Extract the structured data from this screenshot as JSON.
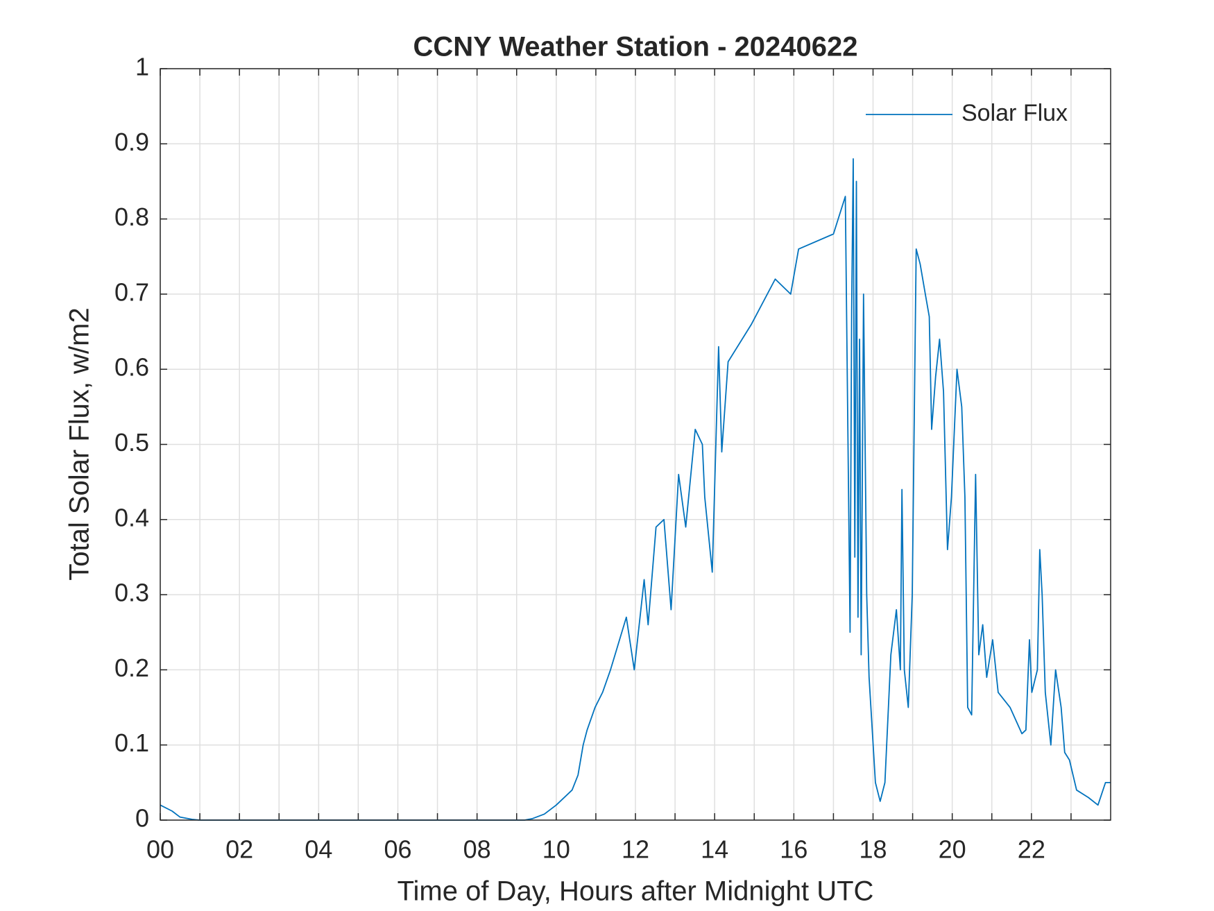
{
  "chart_data": {
    "type": "line",
    "title": "CCNY Weather Station - 20240622",
    "xlabel": "Time of Day, Hours after Midnight UTC",
    "ylabel": "Total Solar Flux, w/m2",
    "x": [
      0,
      0.3,
      0.5,
      0.8,
      1,
      9.2,
      9.4,
      9.7,
      10,
      10.4,
      10.55,
      10.68,
      10.78,
      10.98,
      11.17,
      11.37,
      11.77,
      11.97,
      12.22,
      12.32,
      12.52,
      12.72,
      12.9,
      13.09,
      13.27,
      13.51,
      13.69,
      13.75,
      13.94,
      14.1,
      14.18,
      14.34,
      14.93,
      15.53,
      15.92,
      16.12,
      17.0,
      17.3,
      17.42,
      17.46,
      17.5,
      17.54,
      17.58,
      17.62,
      17.66,
      17.7,
      17.76,
      17.84,
      17.9,
      18.06,
      18.18,
      18.3,
      18.45,
      18.59,
      18.69,
      18.73,
      18.79,
      18.89,
      18.99,
      19.09,
      19.19,
      19.32,
      19.42,
      19.48,
      19.58,
      19.68,
      19.78,
      19.88,
      19.98,
      20.12,
      20.24,
      20.32,
      20.39,
      20.49,
      20.59,
      20.67,
      20.77,
      20.87,
      21.02,
      21.16,
      21.46,
      21.76,
      21.86,
      21.95,
      22.01,
      22.15,
      22.21,
      22.27,
      22.35,
      22.49,
      22.61,
      22.75,
      22.84,
      22.96,
      23.14,
      23.44,
      23.68,
      23.87,
      24.0
    ],
    "series": [
      {
        "name": "Solar Flux",
        "color": "#0072bd",
        "values": [
          0.02,
          0.012,
          0.004,
          0.001,
          0,
          0,
          0.002,
          0.008,
          0.02,
          0.04,
          0.06,
          0.1,
          0.12,
          0.15,
          0.17,
          0.2,
          0.27,
          0.2,
          0.32,
          0.26,
          0.39,
          0.4,
          0.28,
          0.46,
          0.39,
          0.52,
          0.5,
          0.43,
          0.33,
          0.63,
          0.49,
          0.61,
          0.66,
          0.72,
          0.7,
          0.76,
          0.78,
          0.83,
          0.25,
          0.68,
          0.88,
          0.35,
          0.85,
          0.27,
          0.64,
          0.22,
          0.7,
          0.3,
          0.19,
          0.05,
          0.025,
          0.05,
          0.22,
          0.28,
          0.2,
          0.44,
          0.2,
          0.15,
          0.3,
          0.76,
          0.74,
          0.7,
          0.67,
          0.52,
          0.59,
          0.64,
          0.57,
          0.36,
          0.43,
          0.6,
          0.55,
          0.43,
          0.15,
          0.14,
          0.46,
          0.22,
          0.26,
          0.19,
          0.24,
          0.17,
          0.15,
          0.115,
          0.12,
          0.24,
          0.17,
          0.2,
          0.36,
          0.3,
          0.17,
          0.1,
          0.2,
          0.15,
          0.09,
          0.08,
          0.04,
          0.03,
          0.02,
          0.05,
          0.05
        ]
      }
    ],
    "xlim": [
      0,
      24
    ],
    "xticks": [
      {
        "value": 0,
        "label": "00"
      },
      {
        "value": 2,
        "label": "02"
      },
      {
        "value": 4,
        "label": "04"
      },
      {
        "value": 6,
        "label": "06"
      },
      {
        "value": 8,
        "label": "08"
      },
      10,
      12,
      14,
      16,
      18,
      20,
      22
    ],
    "xminorticks": [
      1,
      3,
      5,
      7,
      9,
      11,
      13,
      15,
      17,
      19,
      21,
      23
    ],
    "ylim": [
      0,
      1
    ],
    "yticks": [
      0,
      0.1,
      0.2,
      0.3,
      0.4,
      0.5,
      0.6,
      0.7,
      0.8,
      0.9,
      1
    ],
    "grid": true,
    "legend": "northeast"
  }
}
